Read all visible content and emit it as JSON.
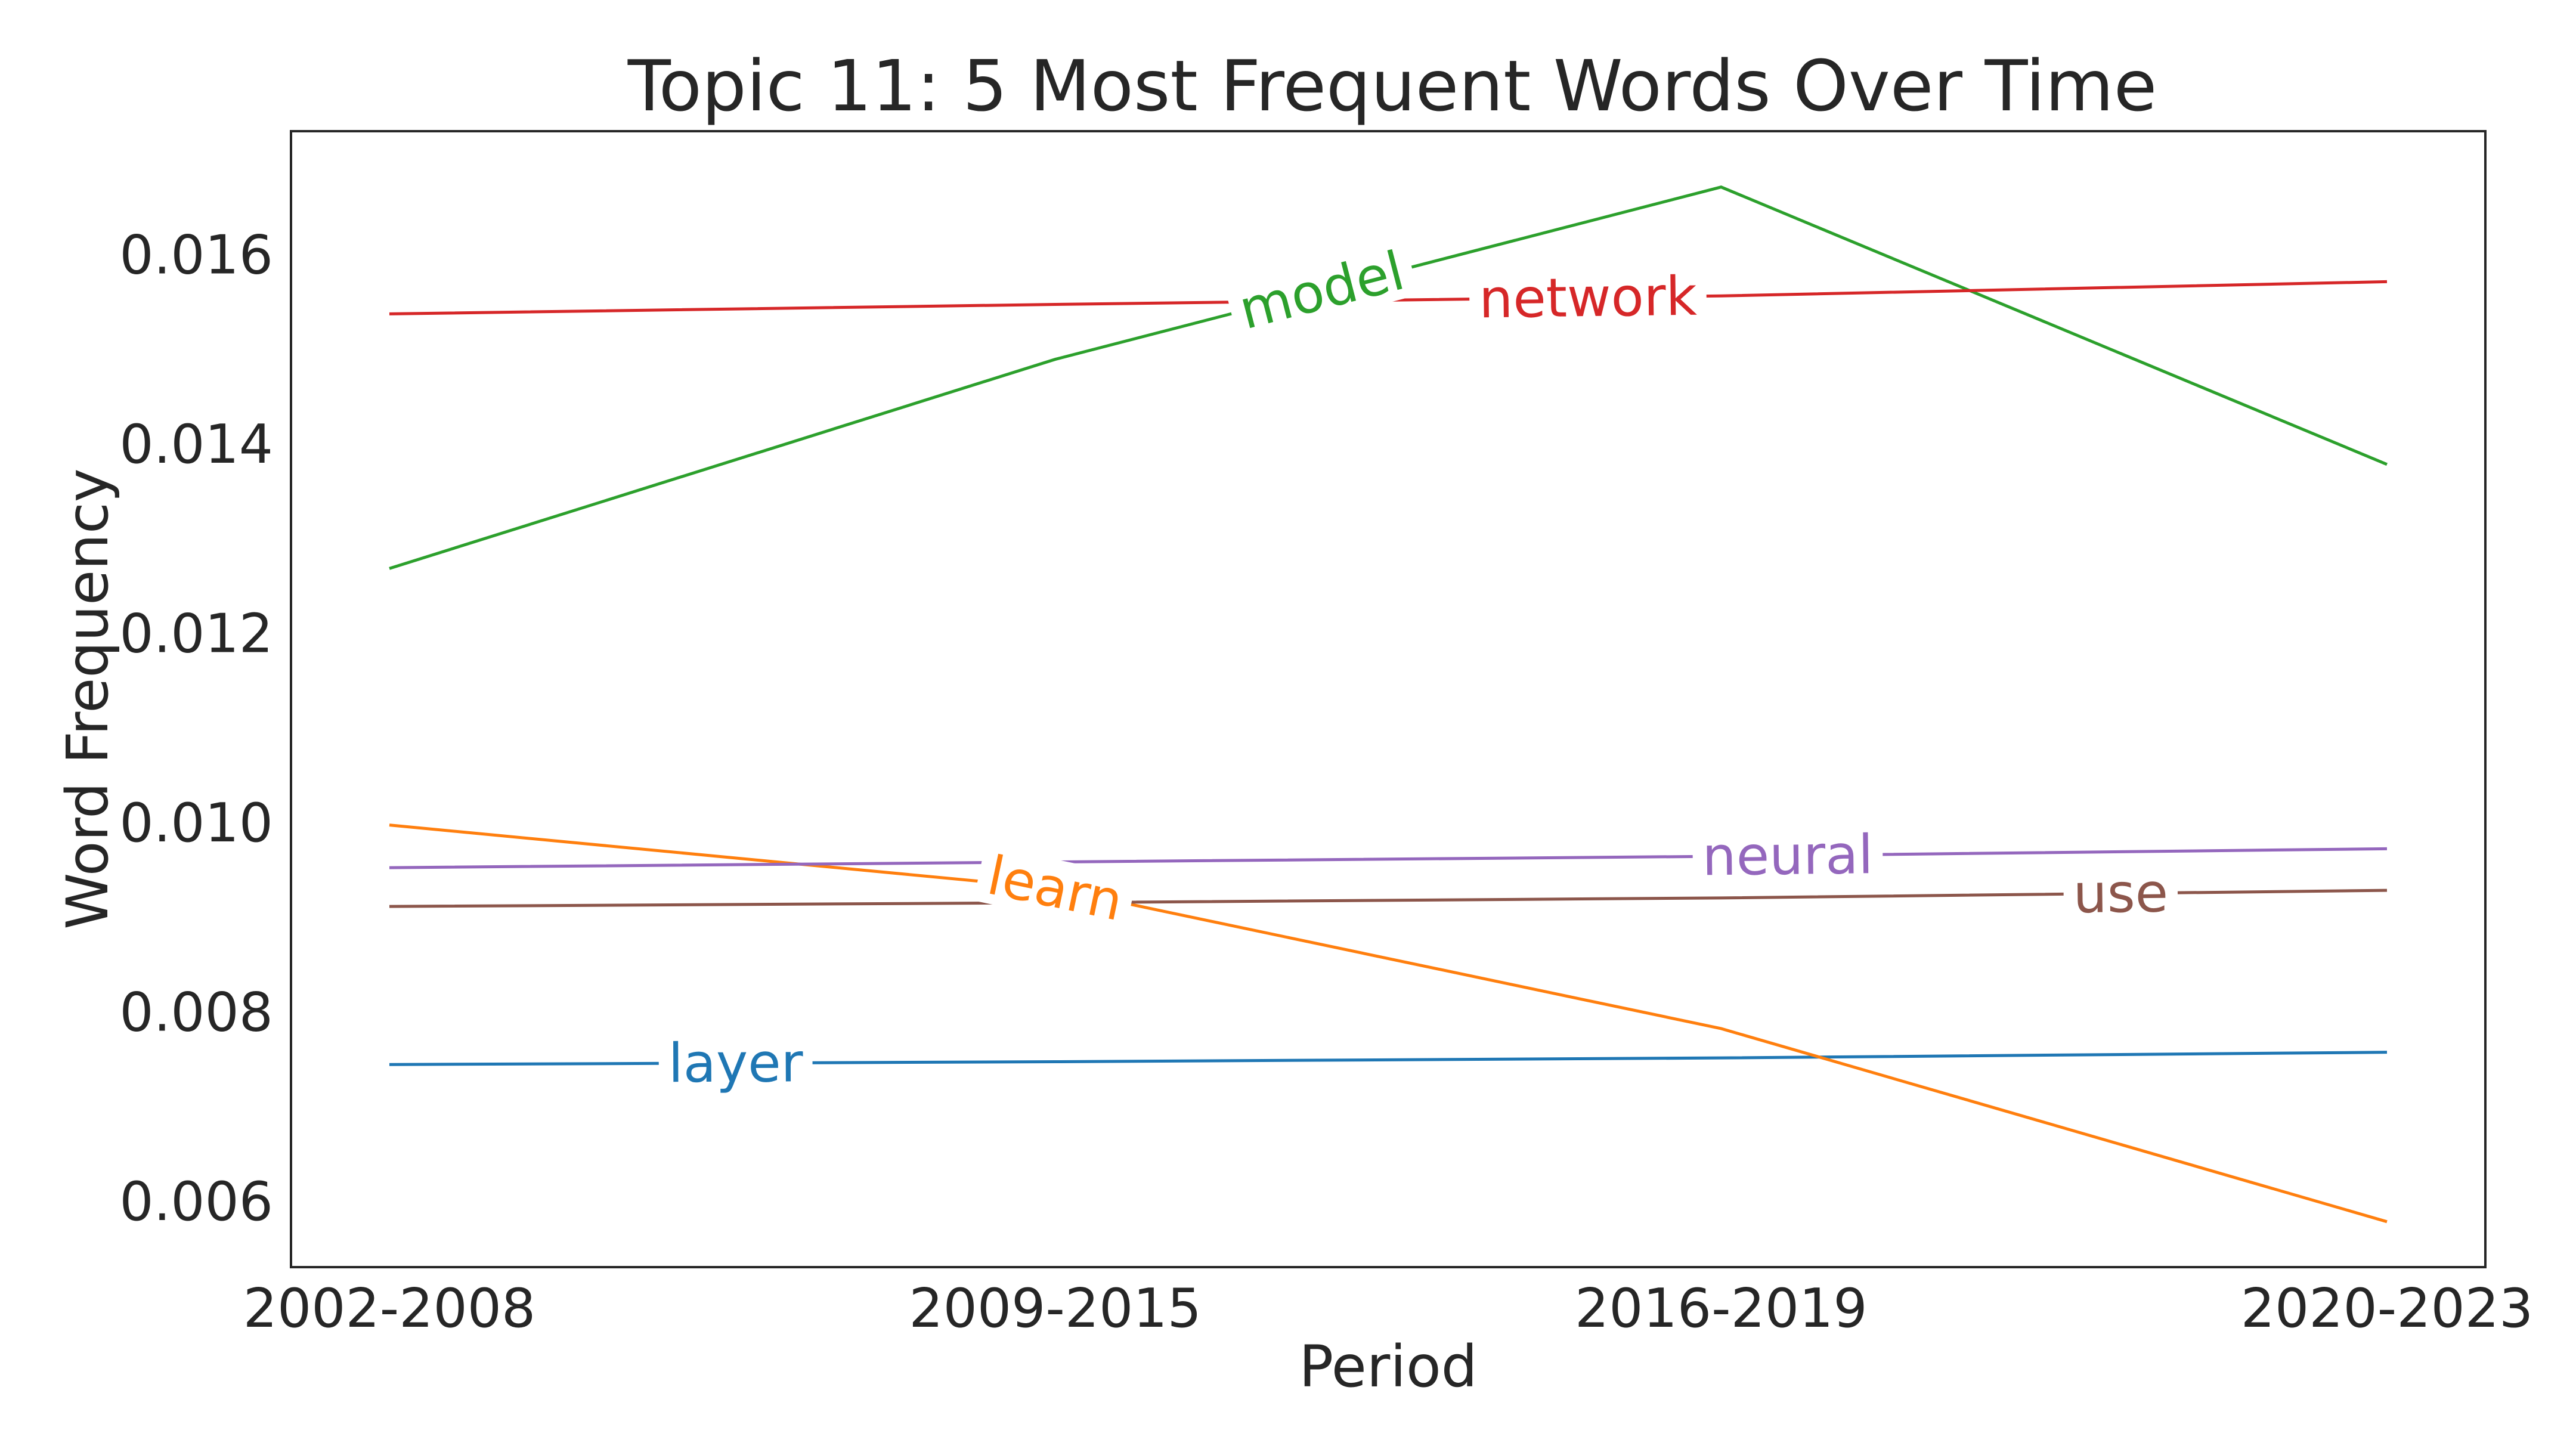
{
  "chart_data": {
    "type": "line",
    "title": "Topic 11: 5 Most Frequent Words Over Time",
    "xlabel": "Period",
    "ylabel": "Word Frequency",
    "categories": [
      "2002-2008",
      "2009-2015",
      "2016-2019",
      "2020-2023"
    ],
    "ylim": [
      0.0053,
      0.0173
    ],
    "yticks": [
      0.006,
      0.008,
      0.01,
      0.012,
      0.014,
      0.016
    ],
    "ytick_labels": [
      "0.006",
      "0.008",
      "0.010",
      "0.012",
      "0.014",
      "0.016"
    ],
    "grid": false,
    "legend": "inline labels on lines",
    "series": [
      {
        "name": "layer",
        "color": "#1f77b4",
        "values": [
          0.00744,
          0.00747,
          0.00751,
          0.00757
        ],
        "label_at": 0.52
      },
      {
        "name": "learn",
        "color": "#ff7f0e",
        "values": [
          0.00997,
          0.0093,
          0.00782,
          0.00578
        ],
        "label_at": 1.0
      },
      {
        "name": "model",
        "color": "#2ca02c",
        "values": [
          0.01268,
          0.01489,
          0.01671,
          0.01378
        ],
        "label_at": 1.4
      },
      {
        "name": "network",
        "color": "#d62728",
        "values": [
          0.01537,
          0.01547,
          0.01556,
          0.01571
        ],
        "label_at": 1.8
      },
      {
        "name": "use",
        "color": "#8c564b",
        "values": [
          0.00911,
          0.00915,
          0.0092,
          0.00928
        ],
        "label_at": 2.6
      },
      {
        "name": "neural",
        "color": "#9467bd",
        "values": [
          0.00952,
          0.00958,
          0.00964,
          0.00972
        ],
        "label_at": 2.1
      }
    ]
  }
}
